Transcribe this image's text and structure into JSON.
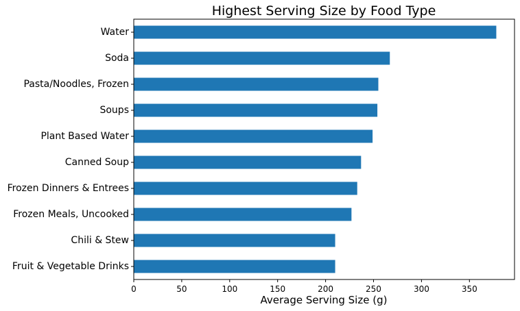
{
  "chart_data": {
    "type": "bar",
    "orientation": "horizontal",
    "title": "Highest Serving Size by Food Type",
    "xlabel": "Average Serving Size (g)",
    "ylabel": "",
    "categories": [
      "Water",
      "Soda",
      "Pasta/Noodles, Frozen",
      "Soups",
      "Plant Based Water",
      "Canned Soup",
      "Frozen Dinners & Entrees",
      "Frozen Meals, Uncooked",
      "Chili & Stew",
      "Fruit & Vegetable Drinks"
    ],
    "values": [
      378,
      267,
      255,
      254,
      249,
      237,
      233,
      227,
      210,
      210
    ],
    "xlim": [
      0,
      397
    ],
    "xticks": [
      0,
      50,
      100,
      150,
      200,
      250,
      300,
      350
    ],
    "grid": false,
    "legend": "none",
    "bar_color": "#1f77b4"
  }
}
